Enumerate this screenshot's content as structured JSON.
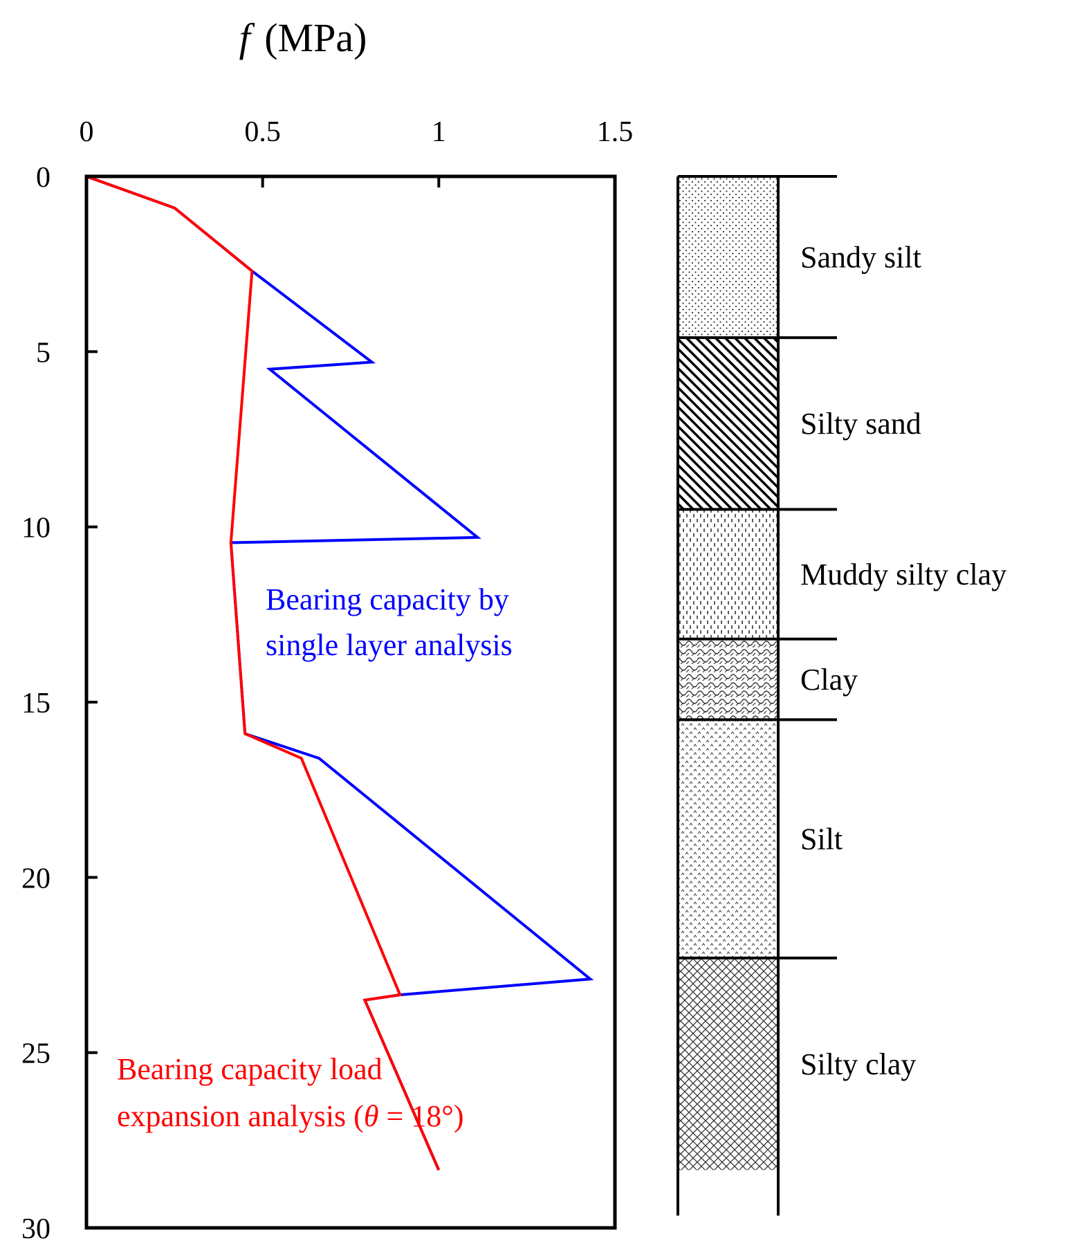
{
  "chart_data": {
    "type": "line",
    "title_symbol": "f",
    "title_unit": "(MPa)",
    "xlabel": "f (MPa)",
    "ylabel": "",
    "xlim": [
      0,
      1.5
    ],
    "ylim": [
      0,
      30
    ],
    "y_inverted": true,
    "x_axis_position": "top",
    "grid": false,
    "x_ticks": [
      0,
      0.5,
      1,
      1.5
    ],
    "x_tick_labels": [
      "0",
      "0.5",
      "1",
      "1.5"
    ],
    "y_ticks": [
      0,
      5,
      10,
      15,
      20,
      25,
      30
    ],
    "y_tick_labels": [
      "0",
      "5",
      "10",
      "15",
      "20",
      "25",
      "30"
    ],
    "series": [
      {
        "name": "Bearing capacity by single layer analysis",
        "color": "#0000ff",
        "points": [
          [
            0,
            0
          ],
          [
            0.25,
            0.9
          ],
          [
            0.47,
            2.7
          ],
          [
            0.81,
            5.3
          ],
          [
            0.52,
            5.5
          ],
          [
            1.11,
            10.3
          ],
          [
            0.41,
            10.45
          ],
          [
            0.45,
            15.9
          ],
          [
            0.66,
            16.6
          ],
          [
            1.43,
            22.9
          ],
          [
            0.89,
            23.35
          ],
          [
            0.79,
            23.5
          ],
          [
            1.0,
            28.35
          ]
        ]
      },
      {
        "name": "Bearing capacity load expansion analysis (θ = 18°)",
        "color": "#ff0000",
        "points": [
          [
            0,
            0
          ],
          [
            0.25,
            0.9
          ],
          [
            0.47,
            2.7
          ],
          [
            0.41,
            10.45
          ],
          [
            0.45,
            15.9
          ],
          [
            0.61,
            16.6
          ],
          [
            0.89,
            23.35
          ],
          [
            0.79,
            23.5
          ],
          [
            1.0,
            28.35
          ]
        ]
      }
    ],
    "annotations": [
      {
        "series": "Bearing capacity by single layer analysis",
        "lines": [
          "Bearing capacity by",
          "single layer analysis"
        ],
        "color": "#0000ff"
      },
      {
        "series": "Bearing capacity load expansion analysis (θ = 18°)",
        "lines": [
          "Bearing capacity load",
          "expansion analysis (",
          "θ",
          " = 18°)"
        ],
        "color": "#ff0000"
      }
    ],
    "soil_layers": [
      {
        "name": "Sandy silt",
        "top": 0,
        "bottom": 4.6,
        "pattern": "dots"
      },
      {
        "name": "Silty sand",
        "top": 4.6,
        "bottom": 9.5,
        "pattern": "diagonal"
      },
      {
        "name": "Muddy silty clay",
        "top": 9.5,
        "bottom": 13.2,
        "pattern": "dashes"
      },
      {
        "name": "Clay",
        "top": 13.2,
        "bottom": 15.5,
        "pattern": "scales"
      },
      {
        "name": "Silt",
        "top": 15.5,
        "bottom": 22.3,
        "pattern": "carets"
      },
      {
        "name": "Silty clay",
        "top": 22.3,
        "bottom": 28.35,
        "pattern": "crosshatch"
      }
    ],
    "column_base": 29.65
  }
}
